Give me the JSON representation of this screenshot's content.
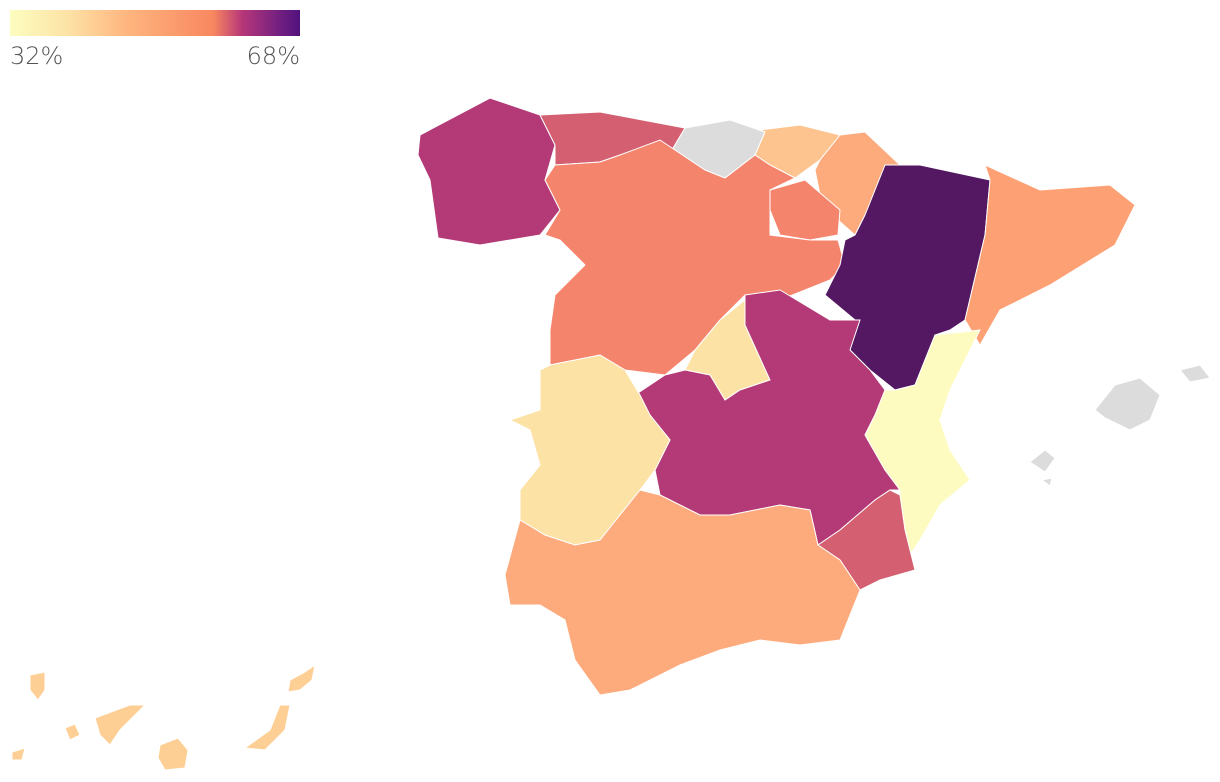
{
  "legend": {
    "min_label": "32%",
    "max_label": "68%",
    "min": 32,
    "max": 68,
    "colors": [
      "#fcfdbf",
      "#fde2a6",
      "#feb67f",
      "#f8875f",
      "#b73779",
      "#721f81",
      "#51127c"
    ]
  },
  "no_data_color": "#dcdcdc",
  "regions": [
    {
      "value": 58,
      "color": "#b33a76"
    },
    {
      "value": 54,
      "color": "#d35f71"
    },
    {
      "value": null,
      "color": "#dcdcdc"
    },
    {
      "value": 40,
      "color": "#fec48f"
    },
    {
      "value": 44,
      "color": "#fdaa7c"
    },
    {
      "value": 49,
      "color": "#f4846c"
    },
    {
      "value": 49,
      "color": "#f4846c"
    },
    {
      "value": 68,
      "color": "#541863"
    },
    {
      "value": 46,
      "color": "#fda073"
    },
    {
      "value": 36,
      "color": "#fde2a6"
    },
    {
      "value": 58,
      "color": "#b33a76"
    },
    {
      "value": 32,
      "color": "#fdfbbf"
    },
    {
      "value": 54,
      "color": "#d35f71"
    },
    {
      "value": 36,
      "color": "#fde2a6"
    },
    {
      "value": 44,
      "color": "#fdaa7c"
    },
    {
      "value": 39,
      "color": "#fecf95"
    },
    {
      "value": null,
      "color": "#dcdcdc"
    }
  ]
}
